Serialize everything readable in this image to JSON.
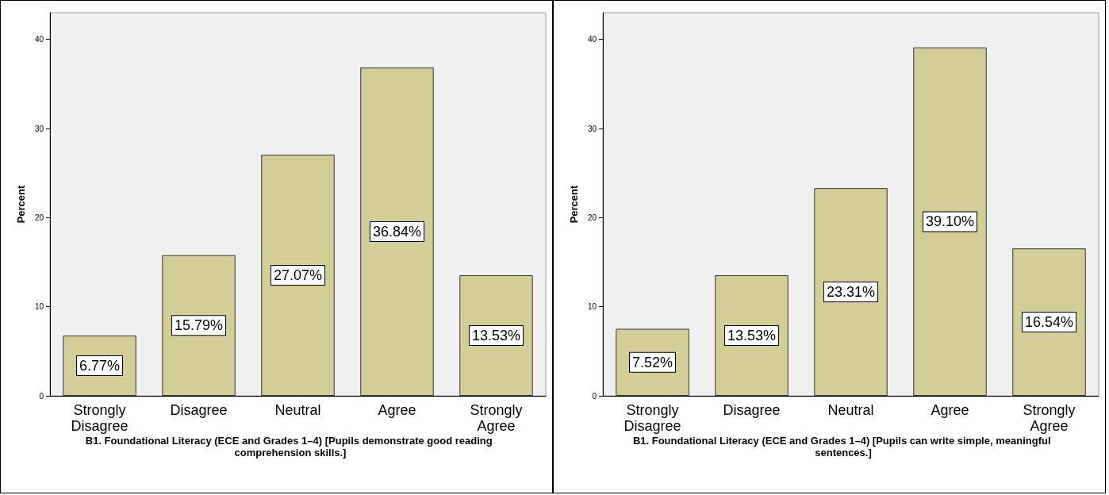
{
  "chart_data": [
    {
      "type": "bar",
      "xlabel": "B1. Foundational Literacy (ECE and Grades 1–4) [Pupils demonstrate good reading comprehension skills.]",
      "ylabel": "Percent",
      "categories": [
        "Strongly\nDisagree",
        "Disagree",
        "Neutral",
        "Agree",
        "Strongly\nAgree"
      ],
      "values": [
        6.77,
        15.79,
        27.07,
        36.84,
        13.53
      ],
      "value_labels": [
        "6.77%",
        "15.79%",
        "27.07%",
        "36.84%",
        "13.53%"
      ],
      "color": "#d3ce97",
      "ylim": [
        0,
        43
      ],
      "yticks": [
        0,
        10,
        20,
        30,
        40
      ],
      "grid": false
    },
    {
      "type": "bar",
      "xlabel": "B1. Foundational Literacy (ECE and Grades 1–4) [Pupils can write simple, meaningful sentences.]",
      "ylabel": "Percent",
      "categories": [
        "Strongly\nDisagree",
        "Disagree",
        "Neutral",
        "Agree",
        "Strongly\nAgree"
      ],
      "values": [
        7.52,
        13.53,
        23.31,
        39.1,
        16.54
      ],
      "value_labels": [
        "7.52%",
        "13.53%",
        "23.31%",
        "39.10%",
        "16.54%"
      ],
      "color": "#d3ce97",
      "ylim": [
        0,
        43
      ],
      "yticks": [
        0,
        10,
        20,
        30,
        40
      ],
      "grid": false
    }
  ]
}
